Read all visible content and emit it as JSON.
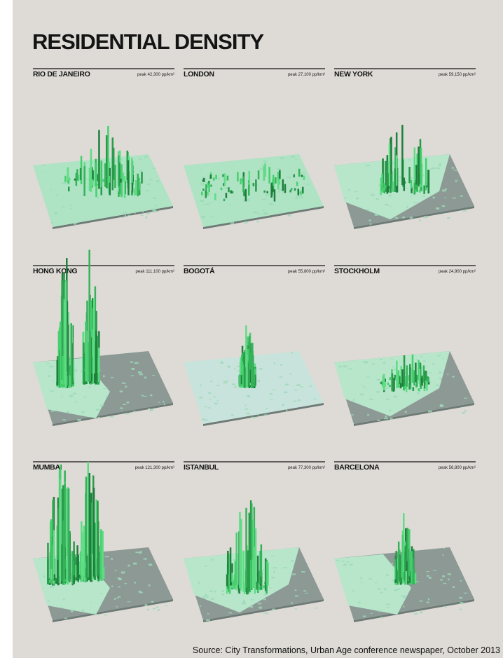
{
  "title": "RESIDENTIAL DENSITY",
  "panels": [
    {
      "city": "RIO DE JANEIRO",
      "peak": "peak 42,300 pp/km²"
    },
    {
      "city": "LONDON",
      "peak": "peak 27,100 pp/km²"
    },
    {
      "city": "NEW YORK",
      "peak": "peak 59,150 pp/km²"
    },
    {
      "city": "HONG KONG",
      "peak": "peak 111,100 pp/km²"
    },
    {
      "city": "BOGOTÁ",
      "peak": "peak 55,800 pp/km²"
    },
    {
      "city": "STOCKHOLM",
      "peak": "peak 24,900 pp/km²"
    },
    {
      "city": "MUMBAI",
      "peak": "peak 121,300 pp/km²"
    },
    {
      "city": "ISTANBUL",
      "peak": "peak 77,300 pp/km²"
    },
    {
      "city": "BARCELONA",
      "peak": "peak 56,800 pp/km²"
    }
  ],
  "source": "Source: City Transformations, Urban Age conference newspaper, October 2013"
}
